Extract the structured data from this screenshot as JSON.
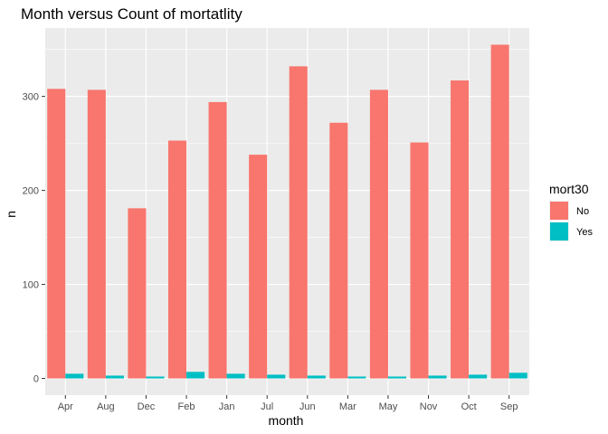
{
  "chart_data": {
    "type": "bar",
    "title": "Month versus Count of mortatlity",
    "xlabel": "month",
    "ylabel": "n",
    "categories": [
      "Apr",
      "Aug",
      "Dec",
      "Feb",
      "Jan",
      "Jul",
      "Jun",
      "Mar",
      "May",
      "Nov",
      "Oct",
      "Sep"
    ],
    "series": [
      {
        "name": "No",
        "color": "#F8766D",
        "values": [
          308,
          307,
          181,
          253,
          294,
          238,
          332,
          272,
          307,
          251,
          317,
          355
        ]
      },
      {
        "name": "Yes",
        "color": "#00BFC4",
        "values": [
          5,
          3,
          2,
          7,
          5,
          4,
          3,
          2,
          2,
          3,
          4,
          6
        ]
      }
    ],
    "ylim": [
      -17.75,
      372.75
    ],
    "yticks": [
      "0",
      "100",
      "200",
      "300"
    ],
    "yticks_values": [
      0,
      100,
      200,
      300
    ],
    "legend": {
      "title": "mort30",
      "position": "right"
    },
    "grid": true,
    "panel_background": "#EBEBEB",
    "grid_color": "#FFFFFF"
  }
}
